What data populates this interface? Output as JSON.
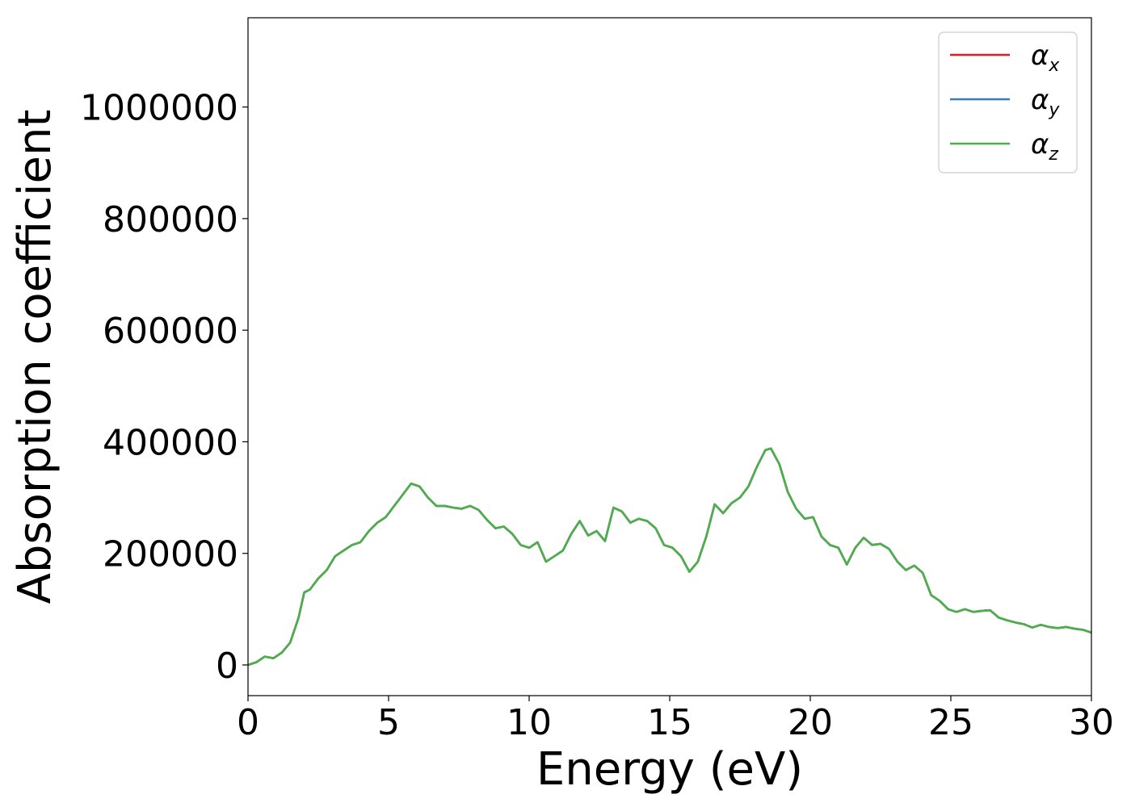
{
  "chart_data": {
    "type": "line",
    "xlabel": "Energy (eV)",
    "ylabel": "Absorption coefficient",
    "xlim": [
      0,
      30
    ],
    "ylim": [
      -55000,
      1160000
    ],
    "grid": false,
    "legend_position": "top-right",
    "x_ticks": [
      0,
      5,
      10,
      15,
      20,
      25,
      30
    ],
    "x_tick_labels": [
      "0",
      "5",
      "10",
      "15",
      "20",
      "25",
      "30"
    ],
    "y_ticks": [
      0,
      200000,
      400000,
      600000,
      800000,
      1000000
    ],
    "y_tick_labels": [
      "0",
      "200000",
      "400000",
      "600000",
      "800000",
      "1000000"
    ],
    "x": [
      0,
      0.3,
      0.6,
      0.9,
      1.2,
      1.5,
      1.8,
      2.0,
      2.2,
      2.5,
      2.8,
      3.1,
      3.4,
      3.7,
      4.0,
      4.3,
      4.6,
      4.9,
      5.2,
      5.5,
      5.8,
      6.1,
      6.4,
      6.7,
      7.0,
      7.3,
      7.6,
      7.9,
      8.2,
      8.5,
      8.8,
      9.1,
      9.4,
      9.7,
      10.0,
      10.3,
      10.6,
      10.9,
      11.2,
      11.5,
      11.8,
      12.1,
      12.4,
      12.7,
      13.0,
      13.3,
      13.6,
      13.9,
      14.2,
      14.5,
      14.8,
      15.1,
      15.4,
      15.7,
      16.0,
      16.3,
      16.6,
      16.9,
      17.2,
      17.5,
      17.8,
      18.1,
      18.4,
      18.6,
      18.9,
      19.2,
      19.5,
      19.8,
      20.1,
      20.4,
      20.7,
      21.0,
      21.3,
      21.6,
      21.9,
      22.2,
      22.5,
      22.8,
      23.1,
      23.4,
      23.7,
      24.0,
      24.3,
      24.6,
      24.9,
      25.2,
      25.5,
      25.8,
      26.1,
      26.4,
      26.7,
      27.0,
      27.3,
      27.6,
      27.9,
      28.2,
      28.5,
      28.8,
      29.1,
      29.4,
      29.7,
      30.0
    ],
    "series": [
      {
        "name": "α_x",
        "color": "#e41a1c",
        "values": [
          0,
          5000,
          15000,
          12000,
          22000,
          40000,
          85000,
          130000,
          135000,
          155000,
          170000,
          195000,
          205000,
          215000,
          220000,
          240000,
          255000,
          265000,
          285000,
          305000,
          325000,
          320000,
          300000,
          285000,
          285000,
          282000,
          280000,
          285000,
          278000,
          260000,
          245000,
          248000,
          235000,
          215000,
          210000,
          220000,
          185000,
          195000,
          205000,
          235000,
          258000,
          232000,
          240000,
          222000,
          282000,
          275000,
          255000,
          262000,
          258000,
          245000,
          215000,
          210000,
          195000,
          167000,
          185000,
          230000,
          288000,
          272000,
          290000,
          300000,
          320000,
          355000,
          385000,
          388000,
          360000,
          310000,
          280000,
          262000,
          265000,
          230000,
          215000,
          210000,
          180000,
          210000,
          228000,
          215000,
          217000,
          208000,
          185000,
          170000,
          178000,
          165000,
          125000,
          115000,
          100000,
          95000,
          100000,
          95000,
          97000,
          98000,
          85000,
          80000,
          76000,
          73000,
          67000,
          72000,
          68000,
          66000,
          68000,
          65000,
          63000,
          58000
        ]
      },
      {
        "name": "α_y",
        "color": "#377eb8",
        "values": [
          0,
          5000,
          15000,
          12000,
          22000,
          40000,
          85000,
          130000,
          135000,
          155000,
          170000,
          195000,
          205000,
          215000,
          220000,
          240000,
          255000,
          265000,
          285000,
          305000,
          325000,
          320000,
          300000,
          285000,
          285000,
          282000,
          280000,
          285000,
          278000,
          260000,
          245000,
          248000,
          235000,
          215000,
          210000,
          220000,
          185000,
          195000,
          205000,
          235000,
          258000,
          232000,
          240000,
          222000,
          282000,
          275000,
          255000,
          262000,
          258000,
          245000,
          215000,
          210000,
          195000,
          167000,
          185000,
          230000,
          288000,
          272000,
          290000,
          300000,
          320000,
          355000,
          385000,
          388000,
          360000,
          310000,
          280000,
          262000,
          265000,
          230000,
          215000,
          210000,
          180000,
          210000,
          228000,
          215000,
          217000,
          208000,
          185000,
          170000,
          178000,
          165000,
          125000,
          115000,
          100000,
          95000,
          100000,
          95000,
          97000,
          98000,
          85000,
          80000,
          76000,
          73000,
          67000,
          72000,
          68000,
          66000,
          68000,
          65000,
          63000,
          58000
        ]
      },
      {
        "name": "α_z",
        "color": "#4daf4a",
        "values": [
          0,
          5000,
          15000,
          12000,
          22000,
          40000,
          85000,
          130000,
          135000,
          155000,
          170000,
          195000,
          205000,
          215000,
          220000,
          240000,
          255000,
          265000,
          285000,
          305000,
          325000,
          320000,
          300000,
          285000,
          285000,
          282000,
          280000,
          285000,
          278000,
          260000,
          245000,
          248000,
          235000,
          215000,
          210000,
          220000,
          185000,
          195000,
          205000,
          235000,
          258000,
          232000,
          240000,
          222000,
          282000,
          275000,
          255000,
          262000,
          258000,
          245000,
          215000,
          210000,
          195000,
          167000,
          185000,
          230000,
          288000,
          272000,
          290000,
          300000,
          320000,
          355000,
          385000,
          388000,
          360000,
          310000,
          280000,
          262000,
          265000,
          230000,
          215000,
          210000,
          180000,
          210000,
          228000,
          215000,
          217000,
          208000,
          185000,
          170000,
          178000,
          165000,
          125000,
          115000,
          100000,
          95000,
          100000,
          95000,
          97000,
          98000,
          85000,
          80000,
          76000,
          73000,
          67000,
          72000,
          68000,
          66000,
          68000,
          65000,
          63000,
          58000
        ]
      }
    ],
    "legend": [
      {
        "base": "α",
        "sub": "x",
        "color": "#e41a1c"
      },
      {
        "base": "α",
        "sub": "y",
        "color": "#377eb8"
      },
      {
        "base": "α",
        "sub": "z",
        "color": "#4daf4a"
      }
    ]
  }
}
